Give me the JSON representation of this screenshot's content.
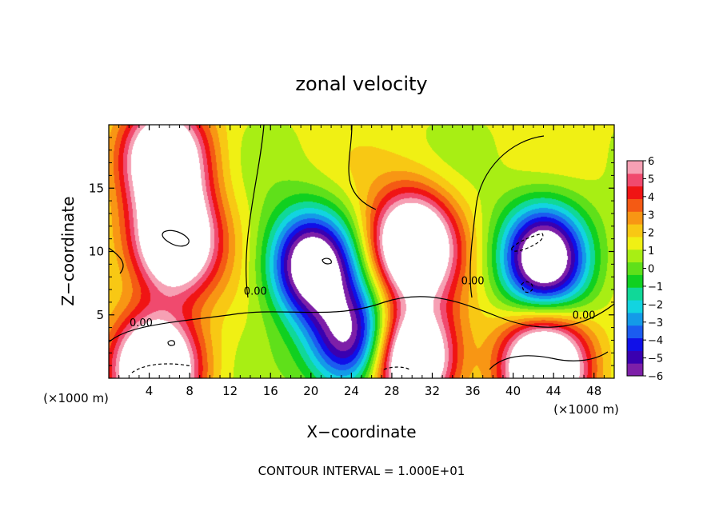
{
  "chart_data": {
    "type": "heatmap",
    "title": "zonal velocity",
    "xlabel": "X−coordinate",
    "ylabel": "Z−coordinate",
    "x_unit_left": "(×1000 m)",
    "x_unit_right": "(×1000 m)",
    "footer": "CONTOUR INTERVAL = 1.000E+01",
    "xlim": [
      0,
      50
    ],
    "ylim": [
      0,
      20
    ],
    "x_ticks": [
      4,
      8,
      12,
      16,
      20,
      24,
      28,
      32,
      36,
      40,
      44,
      48
    ],
    "y_ticks": [
      5,
      10,
      15
    ],
    "colorbar": {
      "min": -6,
      "max": 6,
      "ticks": [
        6,
        5,
        4,
        3,
        2,
        1,
        0,
        -1,
        -2,
        -3,
        -4,
        -5,
        -6
      ],
      "colors": [
        "#7d1fa8",
        "#3a00b0",
        "#1010e8",
        "#1b5cf0",
        "#149ae8",
        "#12d4e0",
        "#10d898",
        "#10d020",
        "#5fe01a",
        "#a8ee14",
        "#f0f014",
        "#f8c814",
        "#f89614",
        "#f45a14",
        "#f01414",
        "#f04a6e",
        "#f6a0b4"
      ]
    },
    "contour_labels": [
      {
        "text": "0.00",
        "x": 3.2,
        "y": 4.1
      },
      {
        "text": "0.00",
        "x": 14.5,
        "y": 6.6
      },
      {
        "text": "0.00",
        "x": 36.0,
        "y": 7.4
      },
      {
        "text": "0.00",
        "x": 47.0,
        "y": 4.7
      }
    ],
    "features": [
      {
        "sign": "positive",
        "cx": 6.5,
        "cz": 10.8,
        "peak": 6
      },
      {
        "sign": "negative",
        "cx": 20.0,
        "cz": 9.0,
        "peak": -6
      },
      {
        "sign": "positive",
        "cx": 30.0,
        "cz": 10.5,
        "peak": 6
      },
      {
        "sign": "negative",
        "cx": 43.0,
        "cz": 9.5,
        "peak": -6
      },
      {
        "sign": "positive",
        "cx": 5.5,
        "cz": 17.5,
        "peak": 5
      },
      {
        "sign": "positive",
        "cx": 4.5,
        "cz": 0.8,
        "peak": 6
      },
      {
        "sign": "positive",
        "cx": 30.0,
        "cz": 1.5,
        "peak": 6
      },
      {
        "sign": "positive",
        "cx": 43.0,
        "cz": 1.0,
        "peak": 6
      },
      {
        "sign": "negative",
        "cx": 24.0,
        "cz": 3.0,
        "peak": -5
      }
    ]
  }
}
